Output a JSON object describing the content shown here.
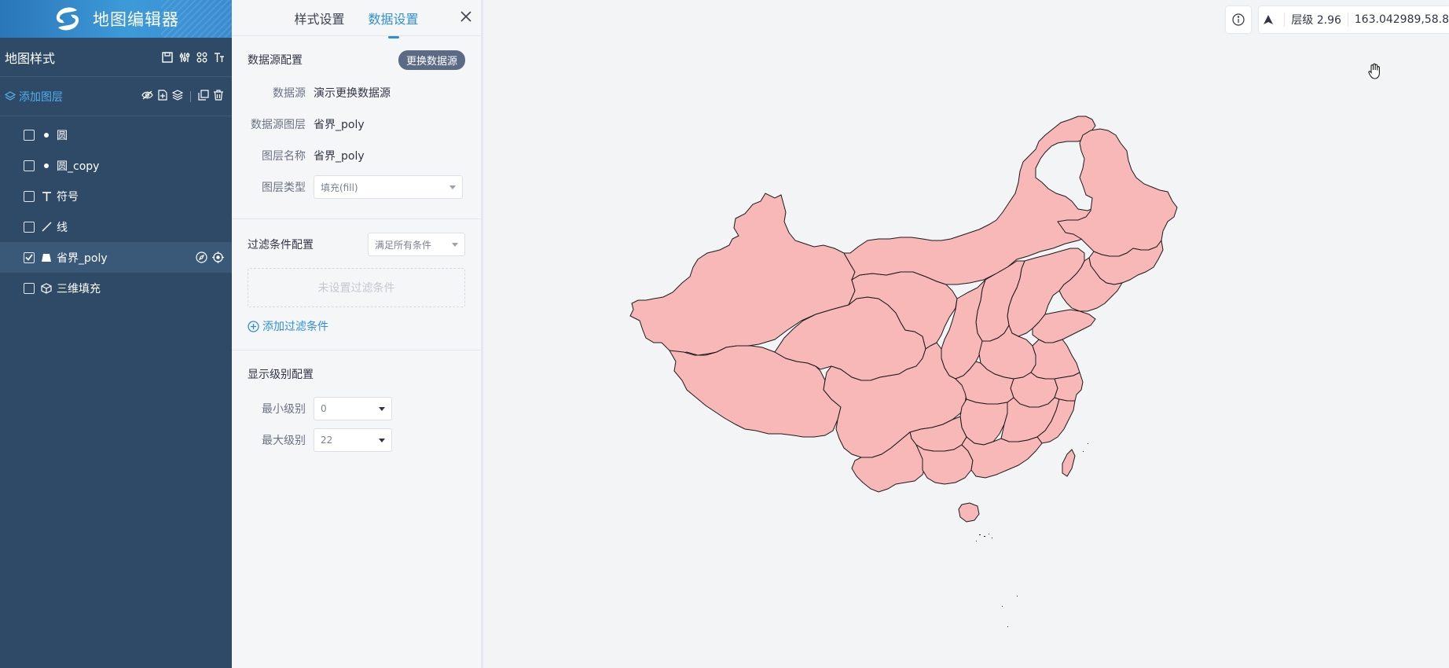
{
  "app": {
    "title": "地图编辑器"
  },
  "sidebar": {
    "style_label": "地图样式",
    "add_layer_label": "添加图层",
    "layers": [
      {
        "name": "圆",
        "type": "circle",
        "checked": false,
        "selected": false
      },
      {
        "name": "圆_copy",
        "type": "circle",
        "checked": false,
        "selected": false
      },
      {
        "name": "符号",
        "type": "symbol",
        "checked": false,
        "selected": false
      },
      {
        "name": "线",
        "type": "line",
        "checked": false,
        "selected": false
      },
      {
        "name": "省界_poly",
        "type": "fill",
        "checked": true,
        "selected": true
      },
      {
        "name": "三维填充",
        "type": "fill-extrusion",
        "checked": false,
        "selected": false
      }
    ]
  },
  "panel": {
    "tabs": [
      "样式设置",
      "数据设置"
    ],
    "active_tab": "数据设置",
    "datasource": {
      "title": "数据源配置",
      "change_button": "更换数据源",
      "fields": [
        {
          "label": "数据源",
          "value": "演示更换数据源"
        },
        {
          "label": "数据源图层",
          "value": "省界_poly"
        },
        {
          "label": "图层名称",
          "value": "省界_poly"
        }
      ],
      "layer_type_label": "图层类型",
      "layer_type_value": "填充(fill)"
    },
    "filter": {
      "title": "过滤条件配置",
      "mode": "满足所有条件",
      "empty_text": "未设置过滤条件",
      "add_label": "添加过滤条件"
    },
    "zoom": {
      "title": "显示级别配置",
      "min_label": "最小级别",
      "min_value": "0",
      "max_label": "最大级别",
      "max_value": "22"
    }
  },
  "map": {
    "zoom_text": "层级 2.96",
    "coords_text": "163.042989,58.8",
    "fill_color": "#f8b8b8",
    "stroke_color": "#1a1a1a",
    "accent_color": "#2f8fd6"
  }
}
